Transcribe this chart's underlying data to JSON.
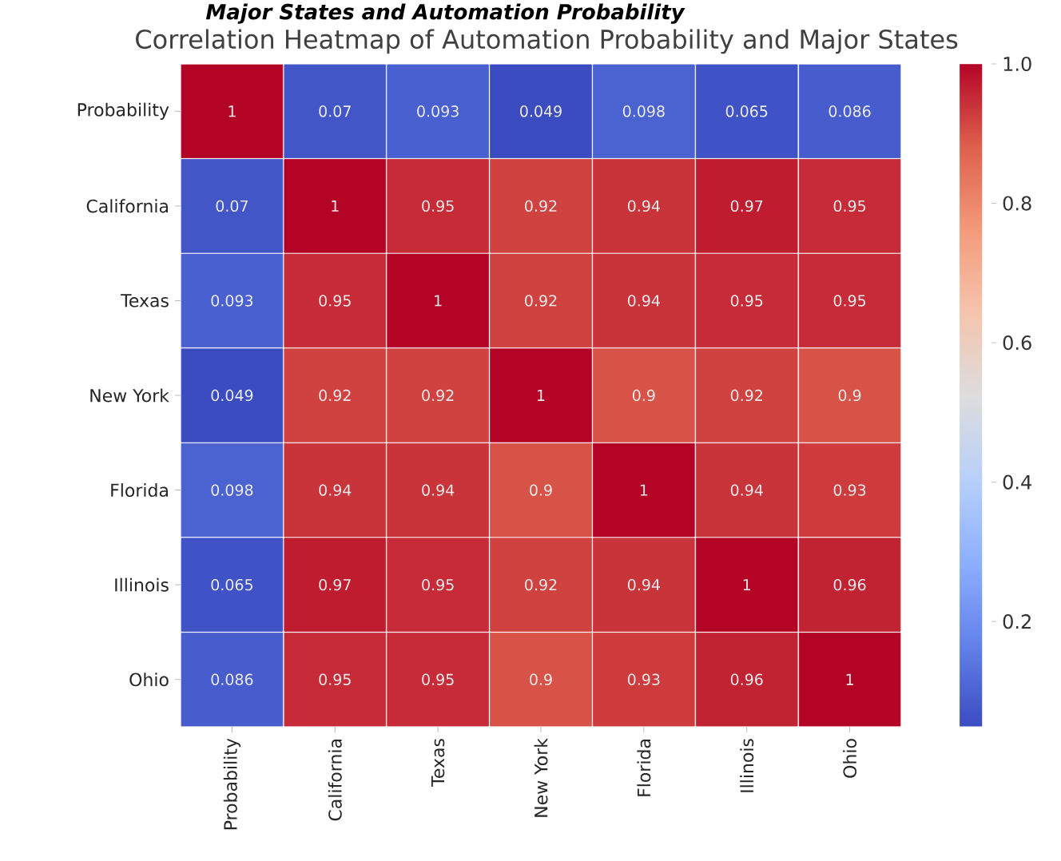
{
  "chart_data": {
    "type": "heatmap",
    "title": "Major States and Automation Probability",
    "subtitle": "Correlation Heatmap of Automation Probability and Major States",
    "categories": [
      "Probability",
      "California",
      "Texas",
      "New York",
      "Florida",
      "Illinois",
      "Ohio"
    ],
    "y_categories": [
      "Probability",
      "California",
      "Texas",
      "New York",
      "Florida",
      "Illinois",
      "Ohio"
    ],
    "cells": [
      [
        1,
        0.07,
        0.093,
        0.049,
        0.098,
        0.065,
        0.086
      ],
      [
        0.07,
        1,
        0.95,
        0.92,
        0.94,
        0.97,
        0.95
      ],
      [
        0.093,
        0.95,
        1,
        0.92,
        0.94,
        0.95,
        0.95
      ],
      [
        0.049,
        0.92,
        0.92,
        1,
        0.9,
        0.92,
        0.9
      ],
      [
        0.098,
        0.94,
        0.94,
        0.9,
        1,
        0.94,
        0.93
      ],
      [
        0.065,
        0.97,
        0.95,
        0.92,
        0.94,
        1,
        0.96
      ],
      [
        0.086,
        0.95,
        0.95,
        0.9,
        0.93,
        0.96,
        1
      ]
    ],
    "clim": [
      0.049,
      1
    ],
    "cticks": [
      0.2,
      0.4,
      0.6,
      0.8,
      {
        "value": 1,
        "label": "1.0"
      }
    ],
    "data_labels": true
  }
}
